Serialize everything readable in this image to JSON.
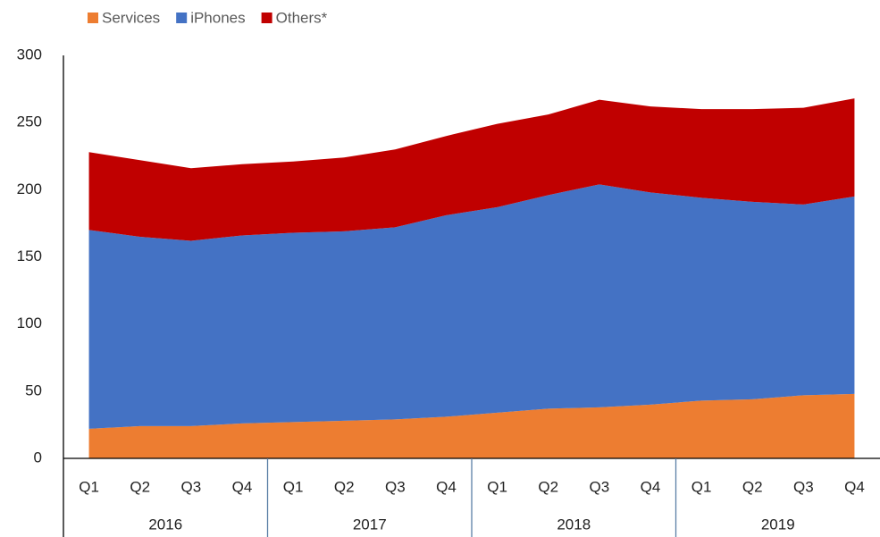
{
  "chart_data": {
    "type": "area",
    "categories": [
      "Q1",
      "Q2",
      "Q3",
      "Q4",
      "Q1",
      "Q2",
      "Q3",
      "Q4",
      "Q1",
      "Q2",
      "Q3",
      "Q4",
      "Q1",
      "Q2",
      "Q3",
      "Q4"
    ],
    "years": [
      "2016",
      "2017",
      "2018",
      "2019"
    ],
    "series": [
      {
        "name": "Services",
        "color": "#ed7d31",
        "values": [
          22,
          24,
          24,
          26,
          27,
          28,
          29,
          31,
          34,
          37,
          38,
          40,
          43,
          44,
          47,
          48
        ]
      },
      {
        "name": "iPhones",
        "color": "#4472c4",
        "values": [
          148,
          141,
          138,
          140,
          141,
          141,
          143,
          150,
          153,
          159,
          166,
          158,
          151,
          147,
          142,
          147
        ]
      },
      {
        "name": "Others*",
        "color": "#c00000",
        "values": [
          58,
          57,
          54,
          53,
          53,
          55,
          58,
          59,
          62,
          60,
          63,
          64,
          66,
          69,
          72,
          73
        ]
      }
    ],
    "stacked": true,
    "ylim": [
      0,
      300
    ],
    "yticks": [
      0,
      50,
      100,
      150,
      200,
      250,
      300
    ],
    "grid": false
  }
}
